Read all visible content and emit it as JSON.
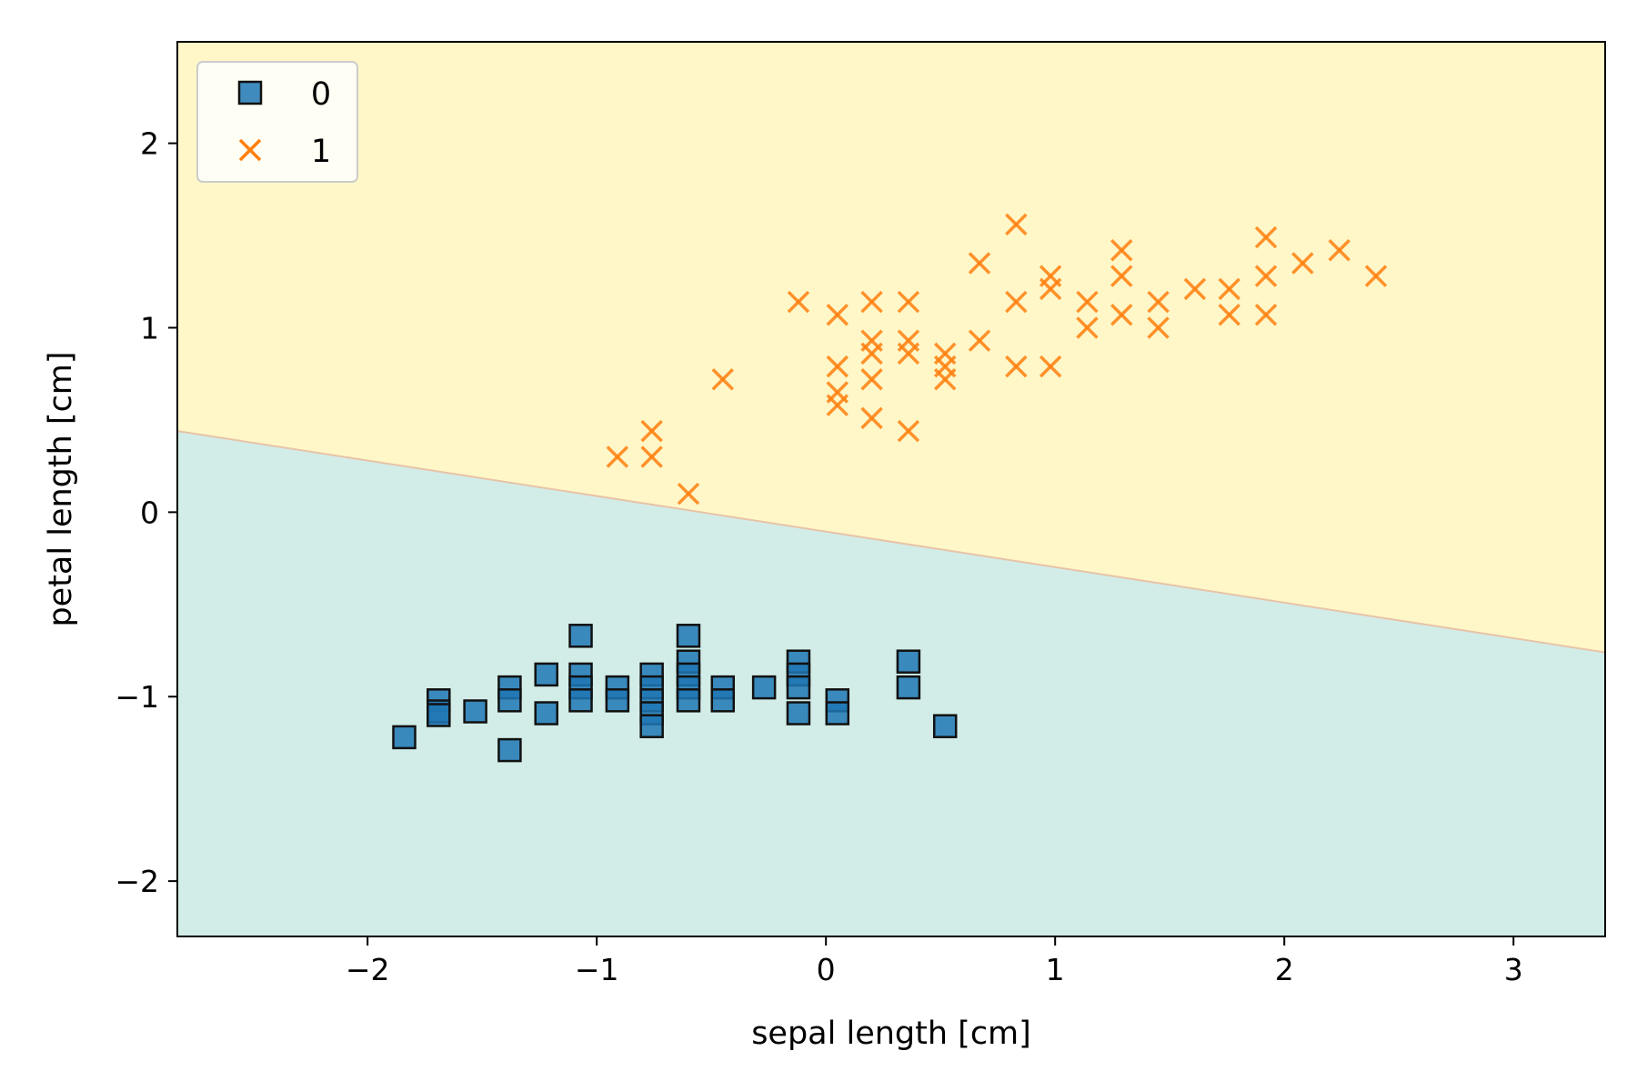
{
  "chart_data": {
    "type": "scatter",
    "title": "",
    "xlabel": "sepal length [cm]",
    "ylabel": "petal length [cm]",
    "xlim": [
      -2.83,
      3.4
    ],
    "ylim": [
      -2.3,
      2.55
    ],
    "x_ticks": [
      -2,
      -1,
      0,
      1,
      2,
      3
    ],
    "y_ticks": [
      -2,
      -1,
      0,
      1,
      2
    ],
    "x_tick_labels": [
      "−2",
      "−1",
      "0",
      "1",
      "2",
      "3"
    ],
    "y_tick_labels": [
      "−2",
      "−1",
      "0",
      "1",
      "2"
    ],
    "grid": false,
    "legend_position": "top-left",
    "decision_boundary": {
      "x": [
        -2.83,
        3.4
      ],
      "y": [
        0.44,
        -0.76
      ],
      "region_below_color": "#d2ede8",
      "region_above_color": "#fff7c8",
      "class_below": "0",
      "class_above": "1"
    },
    "series": [
      {
        "name": "0",
        "marker": "square",
        "color": "#1f77b4",
        "points": [
          [
            -1.84,
            -1.22
          ],
          [
            -1.69,
            -1.02
          ],
          [
            -1.69,
            -1.08
          ],
          [
            -1.69,
            -1.1
          ],
          [
            -1.53,
            -1.08
          ],
          [
            -1.38,
            -0.95
          ],
          [
            -1.38,
            -1.02
          ],
          [
            -1.38,
            -1.29
          ],
          [
            -1.22,
            -0.88
          ],
          [
            -1.22,
            -1.09
          ],
          [
            -1.07,
            -0.67
          ],
          [
            -1.07,
            -0.88
          ],
          [
            -1.07,
            -0.95
          ],
          [
            -1.07,
            -1.02
          ],
          [
            -0.91,
            -0.95
          ],
          [
            -0.91,
            -1.02
          ],
          [
            -0.76,
            -0.88
          ],
          [
            -0.76,
            -0.95
          ],
          [
            -0.76,
            -1.02
          ],
          [
            -0.76,
            -1.09
          ],
          [
            -0.76,
            -1.16
          ],
          [
            -0.6,
            -0.67
          ],
          [
            -0.6,
            -0.81
          ],
          [
            -0.6,
            -0.88
          ],
          [
            -0.6,
            -0.95
          ],
          [
            -0.6,
            -1.02
          ],
          [
            -0.45,
            -0.95
          ],
          [
            -0.45,
            -1.02
          ],
          [
            -0.27,
            -0.95
          ],
          [
            -0.12,
            -0.81
          ],
          [
            -0.12,
            -0.88
          ],
          [
            -0.12,
            -0.95
          ],
          [
            -0.12,
            -1.09
          ],
          [
            0.05,
            -1.02
          ],
          [
            0.05,
            -1.09
          ],
          [
            0.36,
            -0.81
          ],
          [
            0.36,
            -0.95
          ],
          [
            0.52,
            -1.16
          ]
        ]
      },
      {
        "name": "1",
        "marker": "x",
        "color": "#ff7f0e",
        "points": [
          [
            -0.91,
            0.3
          ],
          [
            -0.76,
            0.3
          ],
          [
            -0.76,
            0.44
          ],
          [
            -0.6,
            0.1
          ],
          [
            -0.45,
            0.72
          ],
          [
            -0.12,
            1.14
          ],
          [
            0.05,
            0.58
          ],
          [
            0.05,
            0.65
          ],
          [
            0.05,
            0.79
          ],
          [
            0.05,
            1.07
          ],
          [
            0.2,
            0.51
          ],
          [
            0.2,
            0.72
          ],
          [
            0.2,
            0.86
          ],
          [
            0.2,
            0.93
          ],
          [
            0.2,
            1.14
          ],
          [
            0.36,
            0.44
          ],
          [
            0.36,
            0.86
          ],
          [
            0.36,
            0.93
          ],
          [
            0.36,
            1.14
          ],
          [
            0.52,
            0.72
          ],
          [
            0.52,
            0.79
          ],
          [
            0.52,
            0.86
          ],
          [
            0.67,
            0.93
          ],
          [
            0.67,
            1.35
          ],
          [
            0.83,
            0.79
          ],
          [
            0.83,
            1.14
          ],
          [
            0.83,
            1.56
          ],
          [
            0.98,
            0.79
          ],
          [
            0.98,
            1.21
          ],
          [
            0.98,
            1.28
          ],
          [
            1.14,
            1.0
          ],
          [
            1.14,
            1.14
          ],
          [
            1.29,
            1.07
          ],
          [
            1.29,
            1.28
          ],
          [
            1.29,
            1.42
          ],
          [
            1.45,
            1.0
          ],
          [
            1.45,
            1.14
          ],
          [
            1.61,
            1.21
          ],
          [
            1.76,
            1.07
          ],
          [
            1.76,
            1.21
          ],
          [
            1.92,
            1.07
          ],
          [
            1.92,
            1.28
          ],
          [
            1.92,
            1.49
          ],
          [
            2.08,
            1.35
          ],
          [
            2.24,
            1.42
          ],
          [
            2.4,
            1.28
          ]
        ]
      }
    ]
  }
}
